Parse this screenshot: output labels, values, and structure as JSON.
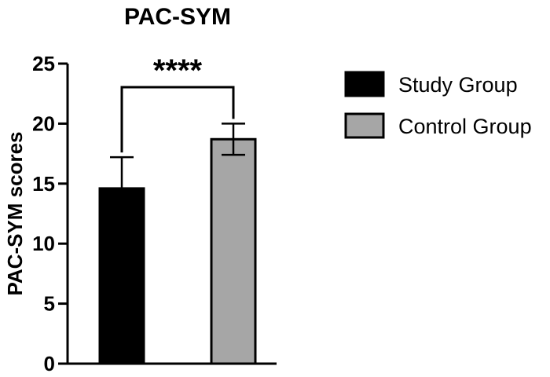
{
  "chart_data": {
    "type": "bar",
    "title": "PAC-SYM",
    "xlabel": "",
    "ylabel": "PAC-SYM scores",
    "ylim": [
      0,
      25
    ],
    "yticks": [
      "0",
      "5",
      "10",
      "15",
      "20",
      "25"
    ],
    "categories": [
      "Study Group",
      "Control Group"
    ],
    "series": [
      {
        "name": "Study Group",
        "value": 14.6,
        "error": 2.6,
        "color": "#000000"
      },
      {
        "name": "Control Group",
        "value": 18.7,
        "error": 1.3,
        "color": "#a6a6a6"
      }
    ],
    "significance": {
      "label": "****",
      "between": [
        "Study Group",
        "Control Group"
      ]
    },
    "legend_position": "right",
    "grid": false
  }
}
